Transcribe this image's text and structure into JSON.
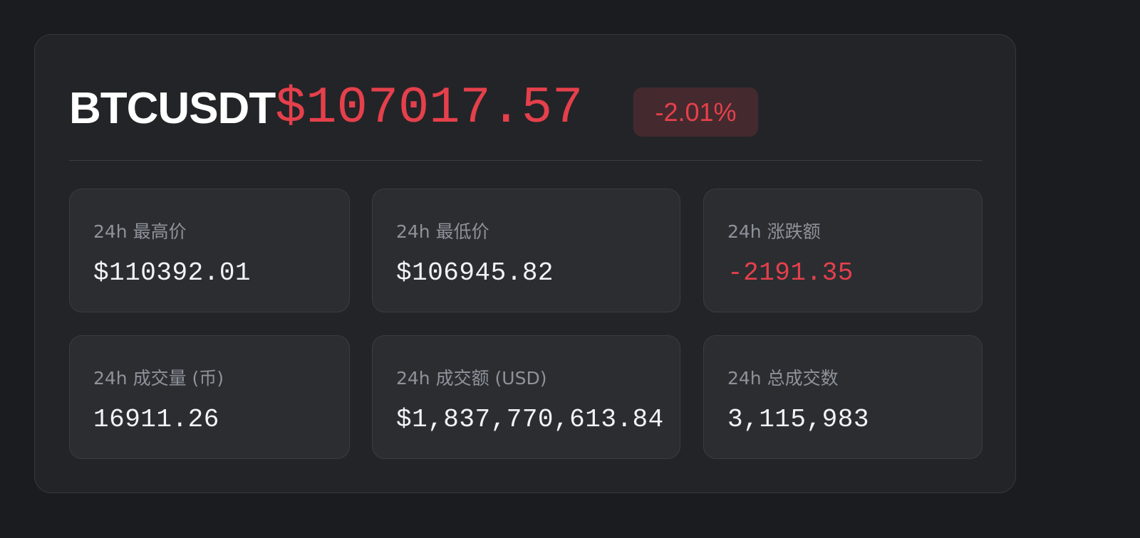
{
  "colors": {
    "down": "#e5404b",
    "text": "#f2f3f5",
    "muted": "#8e9299"
  },
  "ticker": {
    "symbol": "BTCUSDT",
    "price": "$107017.57",
    "change_percent": "-2.01%"
  },
  "stats": {
    "high": {
      "label": "24h 最高价",
      "value": "$110392.01"
    },
    "low": {
      "label": "24h 最低价",
      "value": "$106945.82"
    },
    "change": {
      "label": "24h 涨跌额",
      "value": "-2191.35"
    },
    "volume_coin": {
      "label": "24h 成交量 (币)",
      "value": "16911.26"
    },
    "volume_usd": {
      "label": "24h 成交额 (USD)",
      "value": "$1,837,770,613.84"
    },
    "trades": {
      "label": "24h 总成交数",
      "value": "3,115,983"
    }
  }
}
